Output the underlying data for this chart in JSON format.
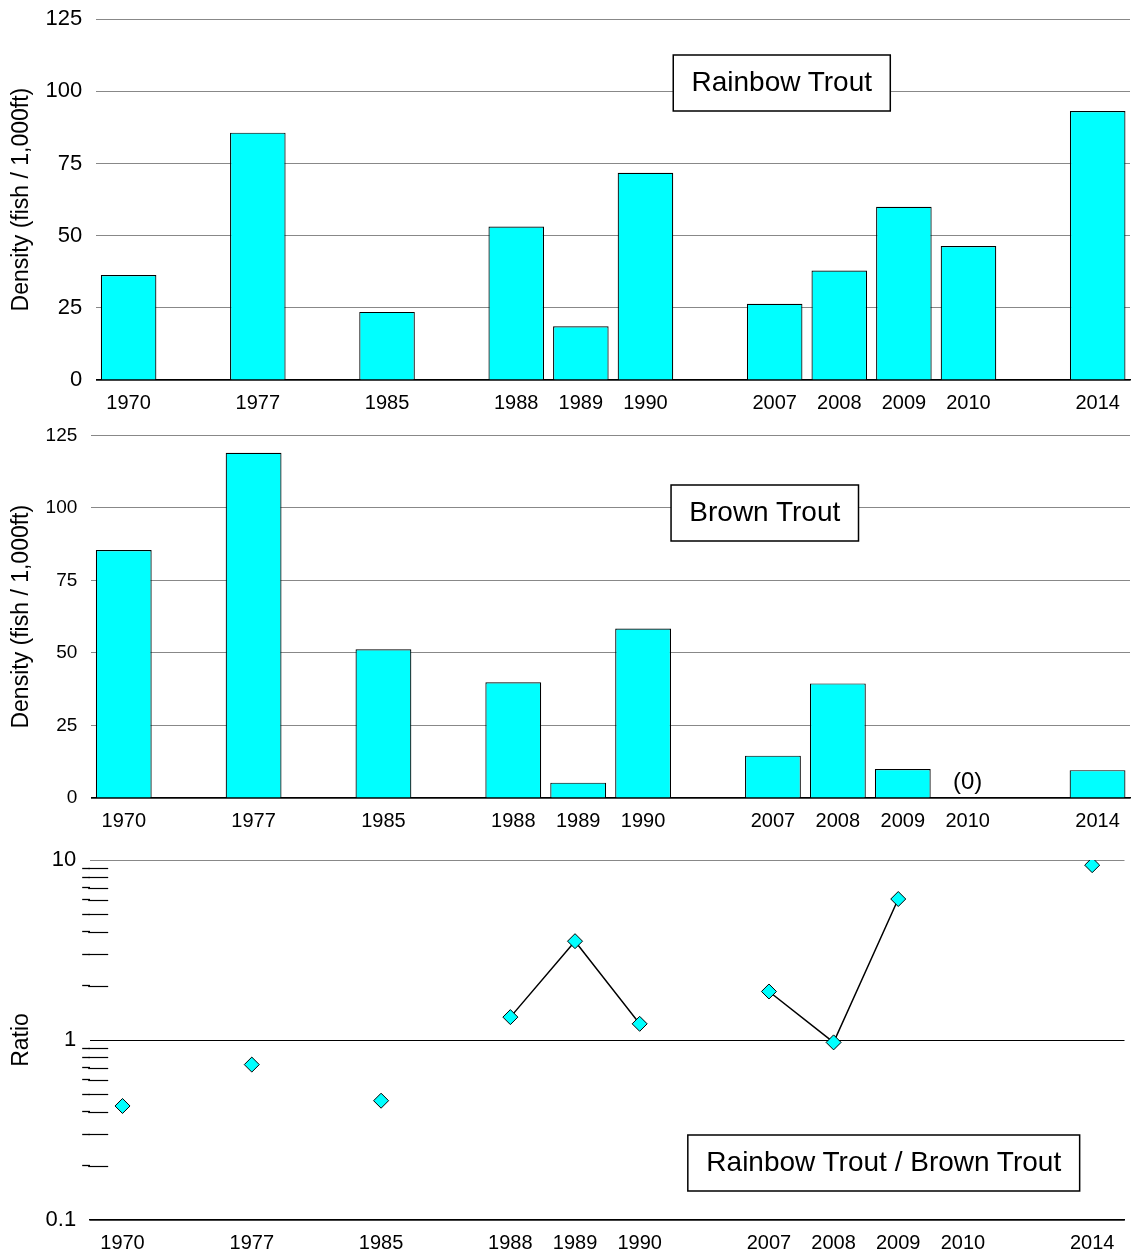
{
  "chart_data": [
    {
      "type": "bar",
      "title": "Rainbow Trout",
      "ylabel": "Density (fish / 1,000ft)",
      "categories": [
        "1970",
        null,
        "1977",
        null,
        "1985",
        null,
        "1988",
        "1989",
        "1990",
        null,
        "2007",
        "2008",
        "2009",
        "2010",
        null,
        "2014"
      ],
      "values": [
        36.4,
        null,
        85.7,
        null,
        23.6,
        null,
        53.2,
        18.6,
        71.8,
        null,
        26.4,
        37.9,
        60,
        46.4,
        null,
        93.2
      ],
      "color": "#00ffff",
      "ylim": [
        0,
        125
      ],
      "yticks": [
        0,
        25,
        50,
        75,
        100,
        125
      ],
      "grid": "y",
      "legend": false
    },
    {
      "type": "bar",
      "title": "Brown Trout",
      "ylabel": "Density (fish / 1,000ft)",
      "categories": [
        "1970",
        null,
        "1977",
        null,
        "1985",
        null,
        "1988",
        "1989",
        "1990",
        null,
        "2007",
        "2008",
        "2009",
        "2010",
        null,
        "2014"
      ],
      "values": [
        85.5,
        null,
        119,
        null,
        51.3,
        null,
        39.9,
        5.3,
        58.4,
        null,
        14.6,
        39.5,
        10,
        0,
        null,
        9.6
      ],
      "color": "#00ffff",
      "ylim": [
        0,
        125
      ],
      "yticks": [
        0,
        25,
        50,
        75,
        100,
        125
      ],
      "grid": "y",
      "legend": false,
      "annotations": [
        {
          "text": "(0)",
          "x": "2010",
          "y": 0
        }
      ]
    },
    {
      "type": "line",
      "title": "Rainbow Trout / Brown Trout",
      "ylabel": "Ratio",
      "categories": [
        "1970",
        null,
        "1977",
        null,
        "1985",
        null,
        "1988",
        "1989",
        "1990",
        null,
        "2007",
        "2008",
        "2009",
        "2010",
        null,
        "2014"
      ],
      "values": [
        0.43,
        null,
        0.73,
        null,
        0.46,
        null,
        1.34,
        3.54,
        1.23,
        null,
        1.86,
        0.97,
        6.07,
        null,
        null,
        9.36
      ],
      "color": "#00ffff",
      "ylim": [
        0.1,
        10
      ],
      "yticks": [
        0.1,
        {
          "value": 0.2,
          "label": null
        },
        {
          "value": 0.3,
          "label": null
        },
        {
          "value": 0.4,
          "label": null
        },
        {
          "value": 0.5,
          "label": null
        },
        {
          "value": 0.6,
          "label": null
        },
        {
          "value": 0.7,
          "label": null
        },
        {
          "value": 0.8,
          "label": null
        },
        {
          "value": 0.9,
          "label": null
        },
        1,
        {
          "value": 2,
          "label": null
        },
        {
          "value": 3,
          "label": null
        },
        {
          "value": 4,
          "label": null
        },
        {
          "value": 5,
          "label": null
        },
        {
          "value": 6,
          "label": null
        },
        {
          "value": 7,
          "label": null
        },
        {
          "value": 8,
          "label": null
        },
        {
          "value": 9,
          "label": null
        },
        10
      ],
      "log": true,
      "grid": "y",
      "legend": false,
      "marker": "diamond",
      "line_style": "solid"
    }
  ]
}
